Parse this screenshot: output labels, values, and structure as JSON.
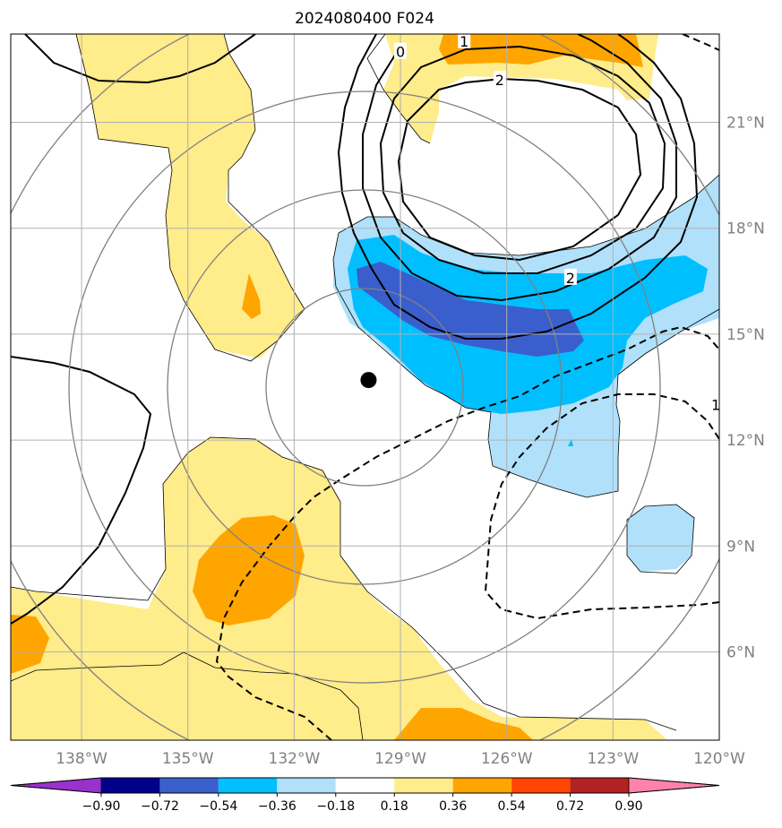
{
  "chart_data": {
    "type": "heatmap",
    "title": "2024080400 F024",
    "projection": "map",
    "lon_range": [
      -140,
      -120
    ],
    "lat_range": [
      3.5,
      23.5
    ],
    "lon_ticks": [
      {
        "value": -138,
        "label": "138°W"
      },
      {
        "value": -135,
        "label": "135°W"
      },
      {
        "value": -132,
        "label": "132°W"
      },
      {
        "value": -129,
        "label": "129°W"
      },
      {
        "value": -126,
        "label": "126°W"
      },
      {
        "value": -123,
        "label": "123°W"
      },
      {
        "value": -120,
        "label": "120°W"
      }
    ],
    "lat_ticks": [
      {
        "value": 21,
        "label": "21°N"
      },
      {
        "value": 18,
        "label": "18°N"
      },
      {
        "value": 15,
        "label": "15°N"
      },
      {
        "value": 12,
        "label": "12°N"
      },
      {
        "value": 9,
        "label": "9°N"
      },
      {
        "value": 6,
        "label": "6°N"
      }
    ],
    "grid": true,
    "colorbar": {
      "orientation": "horizontal",
      "extend": "both",
      "boundaries": [
        -0.9,
        -0.72,
        -0.54,
        -0.36,
        -0.18,
        0.18,
        0.36,
        0.54,
        0.72,
        0.9
      ],
      "tick_labels": [
        "−0.90",
        "−0.72",
        "−0.54",
        "−0.36",
        "−0.18",
        "0.18",
        "0.36",
        "0.54",
        "0.72",
        "0.90"
      ],
      "colors": [
        "#9932cc",
        "#00008b",
        "#3a5fcd",
        "#00bfff",
        "#b0e0fa",
        "#ffffff",
        "#ffec8b",
        "#ffa500",
        "#ff4500",
        "#b22222",
        "#ff82ab"
      ]
    },
    "storm_center": {
      "lon": -129.9,
      "lat": 13.7
    },
    "range_rings_center": {
      "lon": -129.9,
      "lat": 13.7
    },
    "contour_labels": [
      {
        "text": "0",
        "lon": -129.0,
        "lat": 23.0
      },
      {
        "text": "1",
        "lon": -127.2,
        "lat": 23.3
      },
      {
        "text": "2",
        "lon": -126.2,
        "lat": 22.2
      },
      {
        "text": "2",
        "lon": -124.2,
        "lat": 16.6
      },
      {
        "text": "1",
        "lon": -120.1,
        "lat": 13.0
      }
    ]
  }
}
